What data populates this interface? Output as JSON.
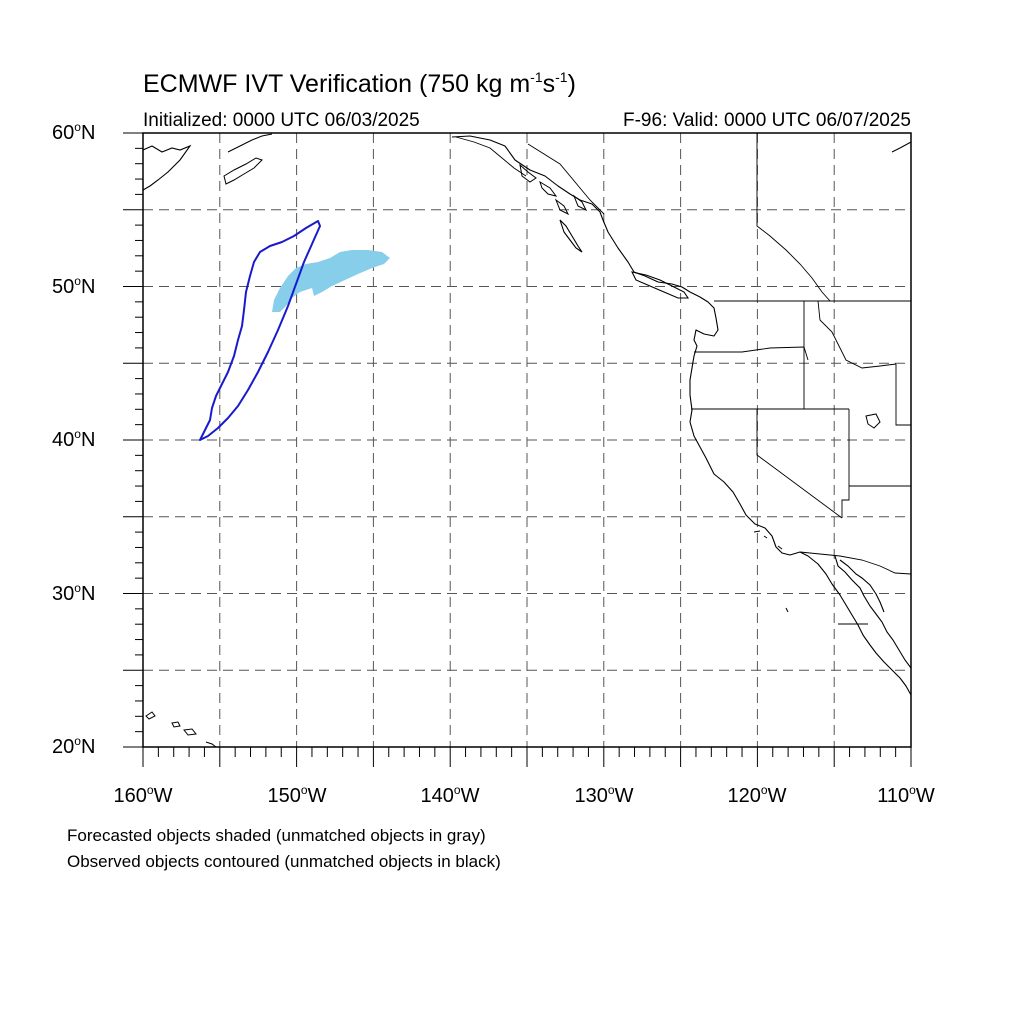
{
  "title": {
    "main": "ECMWF IVT Verification (750 kg m",
    "exp1": "-1",
    "mid": "s",
    "exp2": "-1",
    "end": ")"
  },
  "subtitle_left": "Initialized: 0000 UTC 06/03/2025",
  "subtitle_right": "F-96: Valid: 0000 UTC 06/07/2025",
  "lat_labels": [
    "60",
    "50",
    "40",
    "30",
    "20"
  ],
  "lat_suffix": "N",
  "lon_labels": [
    "160",
    "150",
    "140",
    "130",
    "120",
    "110"
  ],
  "lon_suffix": "W",
  "degree_symbol": "o",
  "notes": [
    "Forecasted objects shaded (unmatched objects in gray)",
    "Observed objects contoured (unmatched objects in black)"
  ],
  "colors": {
    "forecast_fill": "#87ceeb",
    "observed_contour": "#1a1acd",
    "coastline": "#000000",
    "grid": "#555555"
  },
  "map": {
    "lon_range": [
      -160,
      -110
    ],
    "lat_range": [
      20,
      60
    ],
    "grid_spacing_deg": 5,
    "gridlines": "dashed"
  }
}
